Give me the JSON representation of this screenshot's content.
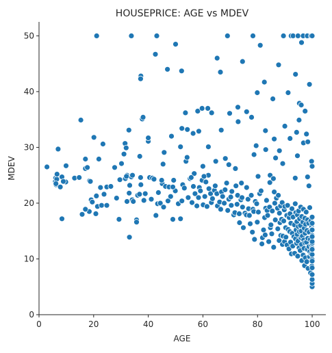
{
  "chart_data": {
    "type": "scatter",
    "title": "HOUSEPRICE: AGE vs MDEV",
    "xlabel": "AGE",
    "ylabel": "MDEV",
    "xlim": [
      0,
      105
    ],
    "ylim": [
      0,
      52.5
    ],
    "x_ticks": [
      0,
      20,
      40,
      60,
      80,
      100
    ],
    "y_ticks": [
      0,
      10,
      20,
      30,
      40,
      50
    ],
    "grid": false,
    "legend": "none",
    "marker_color": "#1f77b4",
    "marker_edge_color": "#ffffff",
    "series": [
      {
        "x": [
          2.9,
          6.0,
          6.1,
          6.2,
          6.5,
          6.6,
          7.0,
          7.8,
          8.4,
          9.8,
          6.2,
          8.9,
          13.0,
          14.7,
          15.3,
          17.0,
          17.7,
          18.4,
          18.5,
          19.1,
          19.5,
          20.1,
          20.8,
          21.0,
          21.4,
          21.9,
          22.5,
          22.9,
          23.4,
          23.8,
          24.8,
          26.3,
          27.7,
          28.4,
          29.3,
          29.6,
          30.2,
          31.1,
          31.5,
          31.9,
          32.2,
          32.9,
          33.0,
          33.2,
          33.8,
          34.1,
          34.5,
          35.7,
          36.1,
          36.8,
          37.2,
          37.8,
          38.1,
          38.4,
          38.9,
          40.0,
          40.5,
          41.1,
          41.5,
          42.1,
          42.8,
          43.4,
          43.7,
          44.4,
          45.1,
          45.6,
          46.3,
          47.2,
          47.6,
          48.2,
          49.0,
          49.3,
          49.9,
          51.0,
          51.8,
          52.3,
          52.6,
          53.2,
          53.8,
          54.3,
          54.6,
          55.3,
          56.0,
          56.5,
          57.1,
          57.8,
          58.4,
          58.7,
          59.1,
          59.7,
          60.1,
          60.7,
          61.1,
          61.5,
          62.0,
          62.2,
          62.8,
          63.1,
          63.5,
          64.2,
          64.5,
          65.1,
          65.3,
          66.1,
          66.5,
          66.8,
          67.2,
          67.8,
          68.1,
          68.7,
          69.1,
          69.5,
          70.2,
          70.4,
          70.6,
          71.3,
          71.7,
          72.1,
          72.5,
          72.7,
          73.3,
          73.4,
          73.9,
          74.3,
          74.5,
          74.8,
          75.4,
          75.9,
          76.0,
          76.5,
          76.7,
          77.0,
          77.3,
          77.7,
          78.1,
          78.3,
          78.6,
          78.9,
          79.2,
          79.7,
          79.9,
          80.3,
          80.8,
          81.3,
          81.6,
          81.8,
          82.2,
          82.6,
          82.8,
          83.0,
          83.3,
          83.5,
          83.7,
          84.1,
          84.4,
          84.7,
          84.9,
          85.2,
          85.4,
          85.9,
          86.1,
          86.3,
          86.5,
          86.9,
          87.3,
          87.4,
          87.6,
          87.9,
          88.0,
          88.2,
          88.4,
          88.5,
          88.8,
          89.0,
          89.1,
          89.3,
          89.6,
          89.8,
          89.9,
          90.0,
          90.3,
          90.4,
          90.7,
          90.8,
          91.0,
          91.2,
          91.5,
          91.6,
          91.8,
          91.9,
          92.1,
          92.2,
          92.4,
          92.6,
          92.7,
          92.9,
          93.0,
          93.3,
          93.5,
          93.6,
          93.8,
          93.9,
          94.0,
          94.1,
          94.3,
          94.4,
          94.5,
          94.6,
          94.7,
          94.8,
          94.9,
          95.0,
          95.2,
          95.3,
          95.4,
          95.6,
          95.7,
          95.8,
          95.9,
          96.0,
          96.1,
          96.2,
          96.2,
          96.4,
          96.6,
          96.7,
          96.8,
          96.9,
          97.0,
          97.1,
          97.2,
          97.3,
          97.3,
          97.4,
          97.5,
          97.6,
          97.8,
          97.9,
          98.0,
          98.1,
          98.2,
          98.3,
          98.4,
          98.5,
          98.7,
          98.8,
          98.9,
          99.0,
          99.1,
          99.1,
          99.3,
          99.4,
          99.5,
          99.6,
          99.7,
          99.8,
          99.9,
          100.0,
          100.0,
          100.0,
          100.0,
          100.0,
          100.0,
          100.0,
          100.0,
          100.0,
          100.0,
          100.0,
          100.0,
          100.0,
          100.0,
          100.0,
          100.0,
          100.0,
          100.0,
          100.0,
          8.4,
          15.8,
          17.0,
          24.8,
          32.2,
          33.1,
          35.7,
          37.3,
          37.2,
          42.6,
          43.1,
          47.0,
          50.0,
          52.2,
          53.6,
          58.1,
          59.7,
          63.2,
          65.2,
          66.4,
          69.0,
          69.8,
          72.8,
          74.5,
          76.0,
          78.3,
          79.9,
          81.0,
          82.5,
          85.6,
          87.7,
          89.5,
          91.2,
          92.3,
          93.0,
          93.9,
          94.8,
          95.3,
          96.1,
          96.7,
          97.4,
          98.2,
          99.0,
          99.6,
          100.0,
          21.1,
          33.8,
          61.8,
          62.0,
          66.7,
          77.8,
          82.9,
          88.0,
          90.0,
          91.9,
          94.3,
          95.2,
          96.0,
          96.8,
          97.9,
          98.4,
          99.8,
          100.0,
          17.0,
          40.0,
          48.5,
          52.3,
          56.4,
          58.5,
          72.9,
          78.7,
          79.5,
          83.0,
          86.1,
          89.2,
          94.6,
          36.9,
          45.4,
          45.8,
          51.8,
          54.2,
          56.8,
          60.0,
          64.7,
          68.2,
          71.9,
          80.2,
          84.6,
          86.6,
          93.8,
          98.8,
          9.9,
          18.8,
          31.6,
          32.0,
          34.2,
          37.3,
          44.9,
          49.0,
          55.7,
          60.4,
          69.5,
          74.1,
          84.5,
          85.8,
          98.3
        ],
        "y": [
          26.5,
          23.9,
          24.5,
          23.3,
          24.3,
          25.2,
          29.7,
          22.9,
          24.7,
          23.8,
          23.5,
          23.9,
          24.5,
          24.6,
          34.9,
          26.2,
          26.4,
          18.5,
          24.0,
          20.6,
          20.2,
          31.8,
          18.1,
          21.3,
          19.4,
          27.9,
          22.8,
          19.6,
          30.6,
          21.6,
          22.9,
          23.0,
          26.4,
          20.9,
          17.1,
          24.2,
          27.1,
          28.8,
          30.7,
          29.9,
          25.0,
          33.1,
          21.8,
          23.2,
          24.7,
          20.6,
          20.3,
          17.0,
          21.4,
          21.6,
          24.6,
          35.1,
          35.4,
          20.5,
          21.7,
          31.1,
          24.6,
          20.7,
          24.5,
          24.3,
          17.8,
          19.9,
          21.9,
          20.0,
          23.5,
          19.3,
          23.0,
          20.4,
          22.9,
          21.2,
          17.1,
          24.1,
          22.2,
          19.9,
          17.2,
          20.4,
          23.3,
          22.7,
          27.5,
          33.2,
          21.0,
          24.4,
          20.1,
          23.0,
          21.7,
          19.5,
          21.0,
          22.8,
          22.2,
          24.1,
          19.7,
          21.2,
          23.8,
          19.4,
          25.0,
          22.6,
          21.7,
          20.1,
          20.8,
          22.3,
          23.1,
          21.7,
          19.5,
          20.2,
          18.9,
          22.0,
          21.2,
          20.0,
          22.4,
          23.6,
          18.7,
          20.7,
          21.1,
          19.6,
          22.1,
          17.9,
          18.3,
          23.1,
          19.8,
          21.4,
          18.1,
          16.5,
          20.6,
          21.0,
          19.3,
          15.6,
          18.2,
          17.9,
          22.8,
          20.7,
          19.0,
          17.8,
          16.3,
          21.4,
          14.8,
          18.9,
          18.5,
          13.5,
          20.3,
          19.9,
          16.6,
          18.4,
          21.7,
          22.2,
          12.7,
          13.8,
          15.2,
          17.4,
          14.3,
          19.1,
          20.5,
          18.7,
          17.8,
          13.1,
          19.3,
          15.6,
          16.1,
          14.5,
          18.6,
          12.1,
          22.0,
          20.0,
          17.0,
          20.9,
          19.1,
          15.4,
          21.4,
          13.3,
          18.2,
          16.5,
          19.5,
          14.2,
          17.1,
          20.1,
          12.6,
          14.1,
          16.8,
          18.8,
          13.1,
          19.4,
          15.6,
          13.9,
          17.8,
          12.5,
          19.6,
          15.3,
          11.8,
          17.4,
          14.9,
          18.1,
          13.0,
          16.4,
          10.9,
          19.0,
          14.6,
          12.3,
          17.5,
          14.0,
          16.1,
          11.0,
          19.9,
          13.6,
          18.3,
          15.2,
          12.8,
          16.7,
          14.4,
          17.9,
          10.5,
          13.2,
          15.8,
          18.6,
          12.0,
          14.9,
          17.2,
          11.5,
          16.0,
          19.3,
          13.8,
          15.0,
          12.6,
          17.6,
          9.7,
          14.1,
          16.6,
          10.7,
          18.9,
          13.4,
          11.9,
          15.5,
          8.8,
          17.3,
          12.9,
          14.6,
          10.2,
          16.2,
          18.4,
          13.0,
          9.5,
          15.1,
          11.7,
          17.0,
          13.7,
          8.3,
          16.4,
          12.2,
          14.8,
          10.4,
          19.2,
          11.3,
          13.5,
          7.5,
          16.8,
          10.9,
          12.5,
          15.7,
          8.7,
          14.2,
          11.9,
          17.5,
          13.1,
          9.9,
          15.3,
          12.8,
          5.0,
          5.6,
          6.3,
          7.2,
          8.4,
          9.6,
          10.8,
          11.7,
          13.1,
          14.0,
          15.2,
          16.4,
          17.2,
          18.0,
          18.9,
          19.6,
          20.3,
          13.9,
          16.6,
          42.8,
          42.3,
          46.7,
          50.0,
          44.0,
          48.5,
          43.7,
          36.2,
          36.5,
          37.0,
          36.2,
          46.0,
          43.5,
          50.0,
          36.1,
          37.2,
          45.4,
          36.4,
          50.0,
          39.8,
          48.3,
          41.7,
          38.7,
          44.8,
          50.0,
          39.8,
          50.0,
          50.0,
          43.1,
          50.0,
          37.9,
          48.8,
          50.0,
          36.5,
          50.0,
          41.3,
          50.0,
          50.0,
          50.0,
          50.0,
          37.0,
          30.1,
          33.1,
          35.4,
          33.0,
          29.4,
          33.8,
          31.6,
          32.7,
          34.9,
          37.6,
          30.8,
          32.4,
          31.0,
          27.5,
          26.6,
          27.9,
          31.7,
          32.0,
          33.4,
          32.5,
          32.9,
          34.6,
          28.7,
          30.3,
          29.6,
          31.5,
          27.1,
          28.5,
          28.4,
          27.0,
          29.1,
          30.1,
          28.2,
          25.3,
          26.6,
          27.5,
          28.0,
          26.2,
          24.8,
          25.0,
          28.1,
          24.5,
          23.1,
          26.7,
          23.9,
          24.4,
          24.8,
          25.0,
          23.3,
          24.1,
          22.9,
          24.6,
          24.8,
          26.9,
          23.6,
          23.7,
          24.4,
          24.7
        ]
      }
    ]
  }
}
